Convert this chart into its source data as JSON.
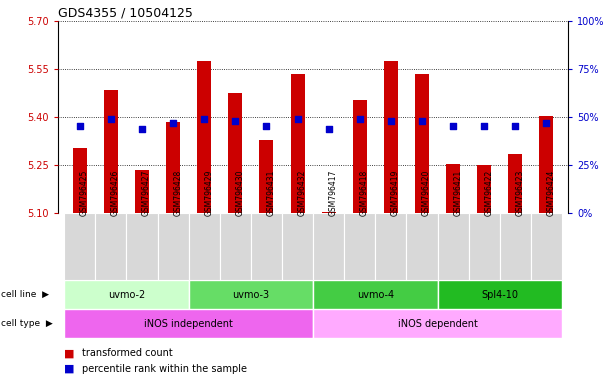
{
  "title": "GDS4355 / 10504125",
  "samples": [
    "GSM796425",
    "GSM796426",
    "GSM796427",
    "GSM796428",
    "GSM796429",
    "GSM796430",
    "GSM796431",
    "GSM796432",
    "GSM796417",
    "GSM796418",
    "GSM796419",
    "GSM796420",
    "GSM796421",
    "GSM796422",
    "GSM796423",
    "GSM796424"
  ],
  "red_values": [
    5.305,
    5.485,
    5.235,
    5.385,
    5.575,
    5.475,
    5.33,
    5.535,
    5.105,
    5.455,
    5.575,
    5.535,
    5.255,
    5.25,
    5.285,
    5.405
  ],
  "blue_values": [
    0.455,
    0.49,
    0.44,
    0.47,
    0.49,
    0.48,
    0.455,
    0.49,
    0.44,
    0.49,
    0.48,
    0.48,
    0.455,
    0.455,
    0.455,
    0.47
  ],
  "ymin": 5.1,
  "ymax": 5.7,
  "yticks_left": [
    5.1,
    5.25,
    5.4,
    5.55,
    5.7
  ],
  "yticks_right_vals": [
    0,
    25,
    50,
    75,
    100
  ],
  "bar_color": "#cc0000",
  "dot_color": "#0000cc",
  "cell_line_groups": [
    {
      "label": "uvmo-2",
      "start": 0,
      "end": 4,
      "color": "#ccffcc"
    },
    {
      "label": "uvmo-3",
      "start": 4,
      "end": 8,
      "color": "#66dd66"
    },
    {
      "label": "uvmo-4",
      "start": 8,
      "end": 12,
      "color": "#44cc44"
    },
    {
      "label": "Spl4-10",
      "start": 12,
      "end": 16,
      "color": "#22bb22"
    }
  ],
  "cell_type_groups": [
    {
      "label": "iNOS independent",
      "start": 0,
      "end": 8,
      "color": "#ee66ee"
    },
    {
      "label": "iNOS dependent",
      "start": 8,
      "end": 16,
      "color": "#ffaaff"
    }
  ],
  "legend_red": "transformed count",
  "legend_blue": "percentile rank within the sample",
  "bar_width": 0.45,
  "ylabel_left_color": "#cc0000",
  "ylabel_right_color": "#0000cc"
}
